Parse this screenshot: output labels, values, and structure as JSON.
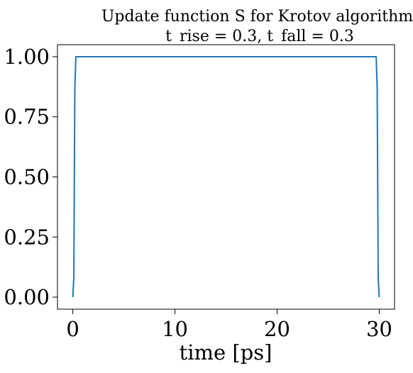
{
  "chart_data": {
    "type": "line",
    "title_lines": [
      "Update function S for Krotov algorithm,",
      "t_rise = 0.3, t_fall = 0.3"
    ],
    "xlabel": "time [ps]",
    "ylabel": "",
    "xlim": [
      -1.5,
      31.5
    ],
    "ylim": [
      -0.05,
      1.05
    ],
    "x_ticks": [
      0,
      10,
      20,
      30
    ],
    "x_tick_labels": [
      "0",
      "10",
      "20",
      "30"
    ],
    "y_ticks": [
      0.0,
      0.25,
      0.5,
      0.75,
      1.0
    ],
    "y_tick_labels": [
      "0.00",
      "0.25",
      "0.50",
      "0.75",
      "1.00"
    ],
    "grid": false,
    "series": [
      {
        "color": "#1f77b4",
        "x": [
          0.0,
          0.1,
          0.2,
          0.3,
          29.7,
          29.8,
          29.9,
          30.0
        ],
        "y": [
          0.0,
          0.08,
          0.87,
          1.0,
          1.0,
          0.87,
          0.08,
          0.0
        ]
      }
    ]
  }
}
